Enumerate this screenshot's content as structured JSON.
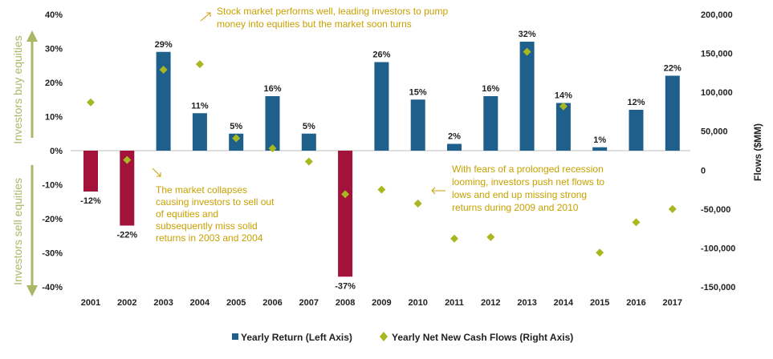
{
  "chart_data": {
    "type": "bar",
    "categories": [
      "2001",
      "2002",
      "2003",
      "2004",
      "2005",
      "2006",
      "2007",
      "2008",
      "2009",
      "2010",
      "2011",
      "2012",
      "2013",
      "2014",
      "2015",
      "2016",
      "2017"
    ],
    "series": [
      {
        "name": "Yearly Return (Left Axis)",
        "kind": "bar",
        "axis": "left",
        "unit": "percent",
        "values": [
          -12,
          -22,
          29,
          11,
          5,
          16,
          5,
          -37,
          26,
          15,
          2,
          16,
          32,
          14,
          1,
          12,
          22
        ],
        "labels": [
          "-12%",
          "-22%",
          "29%",
          "11%",
          "5%",
          "16%",
          "5%",
          "-37%",
          "26%",
          "15%",
          "2%",
          "16%",
          "32%",
          "14%",
          "1%",
          "12%",
          "22%"
        ],
        "positive_color": "#1F5F8B",
        "negative_color": "#A3123A"
      },
      {
        "name": "Yearly Net New Cash Flows (Right Axis)",
        "kind": "scatter",
        "axis": "right",
        "unit": "$MM",
        "values": [
          87000,
          13000,
          129000,
          136000,
          41000,
          28000,
          11000,
          -31000,
          -25000,
          -43000,
          -88000,
          -86000,
          152000,
          82000,
          -106000,
          -67000,
          -50000
        ],
        "color": "#A9B820"
      }
    ],
    "left_axis": {
      "min": -40,
      "max": 40,
      "ticks": [
        40,
        30,
        20,
        10,
        0,
        -10,
        -20,
        -30,
        -40
      ],
      "tick_labels": [
        "40%",
        "30%",
        "20%",
        "10%",
        "0%",
        "-10%",
        "-20%",
        "-30%",
        "-40%"
      ]
    },
    "right_axis": {
      "min": -150000,
      "max": 200000,
      "ticks": [
        200000,
        150000,
        100000,
        50000,
        0,
        -50000,
        -100000,
        -150000
      ],
      "tick_labels": [
        "200,000",
        "150,000",
        "100,000",
        "50,000",
        "0",
        "-50,000",
        "-100,000",
        "-150,000"
      ],
      "title": "Flows ($MM)"
    },
    "side_labels": {
      "top": "Investors buy equities",
      "bottom": "Investors sell equities"
    },
    "annotations": {
      "top": [
        "Stock market performs well, leading investors to pump",
        "money into equities but the market soon turns"
      ],
      "left": [
        "The market collapses",
        "causing investors to sell out",
        "of equities and",
        "subsequently miss solid",
        "returns in 2003 and 2004"
      ],
      "right": [
        "With fears of a prolonged recession",
        "looming, investors push net flows to",
        "lows and end up missing strong",
        "returns during 2009 and 2010"
      ]
    },
    "arrow_color": "#A9B868",
    "annotation_color": "#C8A000",
    "grid": false,
    "legend": "bottom-center"
  }
}
